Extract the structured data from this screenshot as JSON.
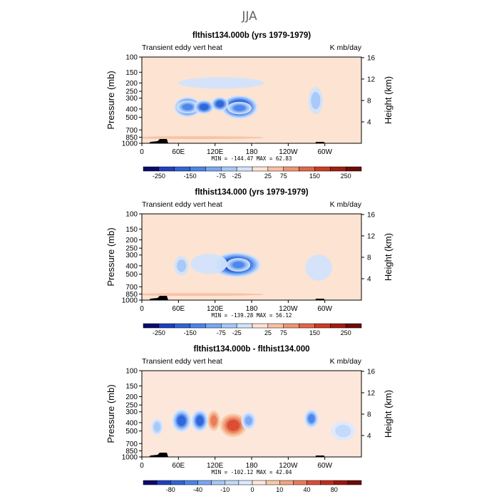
{
  "figure_title": "JJA",
  "colors": {
    "palette_14": [
      "#0b0b6e",
      "#1f3fbf",
      "#2f64d8",
      "#4b85ea",
      "#7aa8f2",
      "#a7c8f7",
      "#d2e3fb",
      "#fde3d2",
      "#f7c1a3",
      "#ef9472",
      "#e2674a",
      "#cd3a25",
      "#a31d12",
      "#6e0b08"
    ],
    "palette_16": [
      "#0b0b6e",
      "#1f3fbf",
      "#2f64d8",
      "#4b85ea",
      "#7aa8f2",
      "#a7c8f7",
      "#c2d9fa",
      "#dde9fc",
      "#fde7da",
      "#f8caa8",
      "#f2a582",
      "#e97a58",
      "#da4c33",
      "#c32b1c",
      "#9a170f",
      "#6e0b08"
    ]
  },
  "chart_data": [
    {
      "type": "heatmap",
      "title": "flthist134.000b (yrs 1979-1979)",
      "left_label": "Transient eddy vert heat",
      "right_label": "K mb/day",
      "ylabel": "Pressure (mb)",
      "ylabel_right": "Height (km)",
      "x_ticks": [
        "0",
        "60E",
        "120E",
        "180",
        "120W",
        "60W"
      ],
      "x_range_deg": [
        0,
        360
      ],
      "y_ticks": [
        "100",
        "150",
        "200",
        "250",
        "300",
        "400",
        "500",
        "700",
        "850",
        "1000"
      ],
      "y_ticks_right": [
        "4",
        "8",
        "12",
        "16"
      ],
      "y_range_mb": [
        100,
        1000
      ],
      "min_max_text": "MIN = -144.47   MAX =  62.83",
      "colorbar_labels": [
        "-250",
        "-150",
        "-75",
        "-25",
        "25",
        "75",
        "150",
        "250"
      ],
      "palette": "palette_14",
      "field": [
        {
          "lon": 75,
          "p": 380,
          "level": 1,
          "dlon": 22,
          "dp": 200
        },
        {
          "lon": 75,
          "p": 380,
          "level": 3,
          "dlon": 18,
          "dp": 130
        },
        {
          "lon": 102,
          "p": 380,
          "level": 2,
          "dlon": 16,
          "dp": 140
        },
        {
          "lon": 160,
          "p": 380,
          "level": 0,
          "dlon": 30,
          "dp": 230
        },
        {
          "lon": 160,
          "p": 390,
          "level": 3,
          "dlon": 20,
          "dp": 130
        },
        {
          "lon": 128,
          "p": 350,
          "level": 2,
          "dlon": 14,
          "dp": 130
        },
        {
          "lon": 130,
          "p": 200,
          "level": 6,
          "dlon": 70,
          "dp": 60
        },
        {
          "lon": 285,
          "p": 320,
          "level": 5,
          "dlon": 12,
          "dp": 220
        },
        {
          "lon": 90,
          "p": 860,
          "level": 8,
          "dlon": 110,
          "dp": 40
        }
      ]
    },
    {
      "type": "heatmap",
      "title": "flthist134.000 (yrs 1979-1979)",
      "left_label": "Transient eddy vert heat",
      "right_label": "K mb/day",
      "ylabel": "Pressure (mb)",
      "ylabel_right": "Height (km)",
      "x_ticks": [
        "0",
        "60E",
        "120E",
        "180",
        "120W",
        "60W"
      ],
      "x_range_deg": [
        0,
        360
      ],
      "y_ticks": [
        "100",
        "150",
        "200",
        "250",
        "300",
        "400",
        "500",
        "700",
        "850",
        "1000"
      ],
      "y_ticks_right": [
        "4",
        "8",
        "12",
        "16"
      ],
      "y_range_mb": [
        100,
        1000
      ],
      "min_max_text": "MIN = -139.28   MAX =  56.12",
      "colorbar_labels": [
        "-250",
        "-150",
        "-75",
        "-25",
        "25",
        "75",
        "150",
        "250"
      ],
      "palette": "palette_14",
      "field": [
        {
          "lon": 155,
          "p": 390,
          "level": 0,
          "dlon": 40,
          "dp": 250
        },
        {
          "lon": 158,
          "p": 390,
          "level": 3,
          "dlon": 20,
          "dp": 140
        },
        {
          "lon": 65,
          "p": 400,
          "level": 5,
          "dlon": 12,
          "dp": 200
        },
        {
          "lon": 110,
          "p": 380,
          "level": 6,
          "dlon": 30,
          "dp": 200
        },
        {
          "lon": 290,
          "p": 420,
          "level": 6,
          "dlon": 22,
          "dp": 280
        },
        {
          "lon": 90,
          "p": 860,
          "level": 8,
          "dlon": 110,
          "dp": 40
        }
      ]
    },
    {
      "type": "heatmap",
      "title": "flthist134.000b - flthist134.000",
      "left_label": "Transient eddy vert heat",
      "right_label": "K mb/day",
      "ylabel": "Pressure (mb)",
      "ylabel_right": "Height (km)",
      "x_ticks": [
        "0",
        "60E",
        "120E",
        "180",
        "120W",
        "60W"
      ],
      "x_range_deg": [
        0,
        360
      ],
      "y_ticks": [
        "100",
        "150",
        "200",
        "250",
        "300",
        "400",
        "500",
        "700",
        "850",
        "1000"
      ],
      "y_ticks_right": [
        "4",
        "8",
        "12",
        "16"
      ],
      "y_range_mb": [
        100,
        1000
      ],
      "min_max_text": "MIN = -102.12   MAX =  42.04",
      "colorbar_labels": [
        "-80",
        "-40",
        "-10",
        "0",
        "10",
        "40",
        "80"
      ],
      "palette": "palette_16",
      "field": [
        {
          "lon": 65,
          "p": 380,
          "level": 2,
          "dlon": 16,
          "dp": 230
        },
        {
          "lon": 95,
          "p": 380,
          "level": 2,
          "dlon": 14,
          "dp": 220
        },
        {
          "lon": 150,
          "p": 430,
          "level": 12,
          "dlon": 22,
          "dp": 260
        },
        {
          "lon": 118,
          "p": 380,
          "level": 11,
          "dlon": 10,
          "dp": 200
        },
        {
          "lon": 175,
          "p": 380,
          "level": 4,
          "dlon": 12,
          "dp": 180
        },
        {
          "lon": 278,
          "p": 360,
          "level": 3,
          "dlon": 12,
          "dp": 180
        },
        {
          "lon": 25,
          "p": 450,
          "level": 5,
          "dlon": 10,
          "dp": 200
        },
        {
          "lon": 330,
          "p": 500,
          "level": 6,
          "dlon": 20,
          "dp": 250
        }
      ]
    }
  ]
}
